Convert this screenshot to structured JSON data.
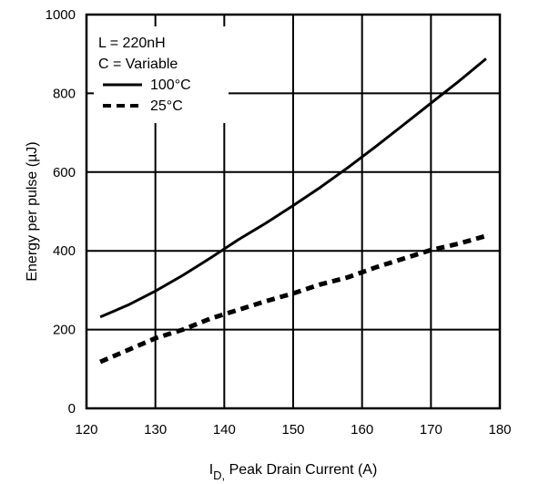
{
  "chart_data": {
    "type": "line",
    "xlabel_main": "I",
    "xlabel_sub": "D,",
    "xlabel_rest": " Peak Drain Current  (A)",
    "ylabel": "Energy per pulse (µJ)",
    "xlim": [
      120,
      180
    ],
    "ylim": [
      0,
      1000
    ],
    "x_ticks": [
      120,
      130,
      140,
      150,
      160,
      170,
      180
    ],
    "y_ticks": [
      0,
      200,
      400,
      600,
      800,
      1000
    ],
    "grid": true,
    "legend": {
      "position": "top-left",
      "notes": [
        "L = 220nH",
        "C = Variable"
      ]
    },
    "series": [
      {
        "name": "100°C",
        "style": "solid",
        "x": [
          122,
          126,
          130,
          134,
          138,
          142,
          146,
          150,
          154,
          158,
          162,
          166,
          170,
          174,
          178
        ],
        "y": [
          232,
          262,
          298,
          338,
          382,
          428,
          470,
          515,
          562,
          612,
          665,
          720,
          775,
          830,
          888
        ]
      },
      {
        "name": "25°C",
        "style": "dashed",
        "x": [
          122,
          126,
          130,
          134,
          138,
          142,
          146,
          150,
          154,
          158,
          162,
          166,
          170,
          174,
          178
        ],
        "y": [
          118,
          148,
          178,
          200,
          228,
          250,
          272,
          292,
          315,
          333,
          358,
          380,
          402,
          418,
          438
        ]
      }
    ]
  }
}
